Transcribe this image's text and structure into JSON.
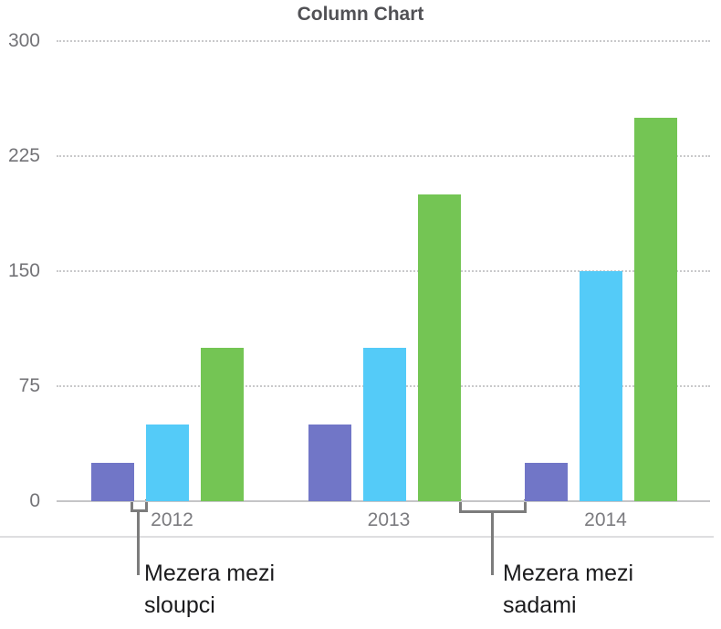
{
  "chart_data": {
    "type": "bar",
    "title": "Column Chart",
    "categories": [
      "2012",
      "2013",
      "2014"
    ],
    "series": [
      {
        "color": "#7176C7",
        "values": [
          25,
          50,
          25
        ]
      },
      {
        "color": "#54CBF8",
        "values": [
          50,
          100,
          150
        ]
      },
      {
        "color": "#74C554",
        "values": [
          100,
          200,
          250
        ]
      }
    ],
    "ylim": [
      0,
      300
    ],
    "yticks": [
      300,
      225,
      150,
      75,
      0
    ],
    "xlabel": "",
    "ylabel": "",
    "grid": "horizontal-dotted",
    "legend": "none"
  },
  "annotations": {
    "column_gap_label": "Mezera mezi sloupci",
    "series_gap_label": "Mezera mezi sadami"
  },
  "colors": {
    "title_text": "#515155",
    "axis_text": "#737377",
    "gridline": "#c9c9cb",
    "baseline": "#c5c5c7",
    "bracket": "#7c7c7c",
    "annotation_text": "#1b1b1d",
    "bottom_rule": "#dedee0"
  }
}
